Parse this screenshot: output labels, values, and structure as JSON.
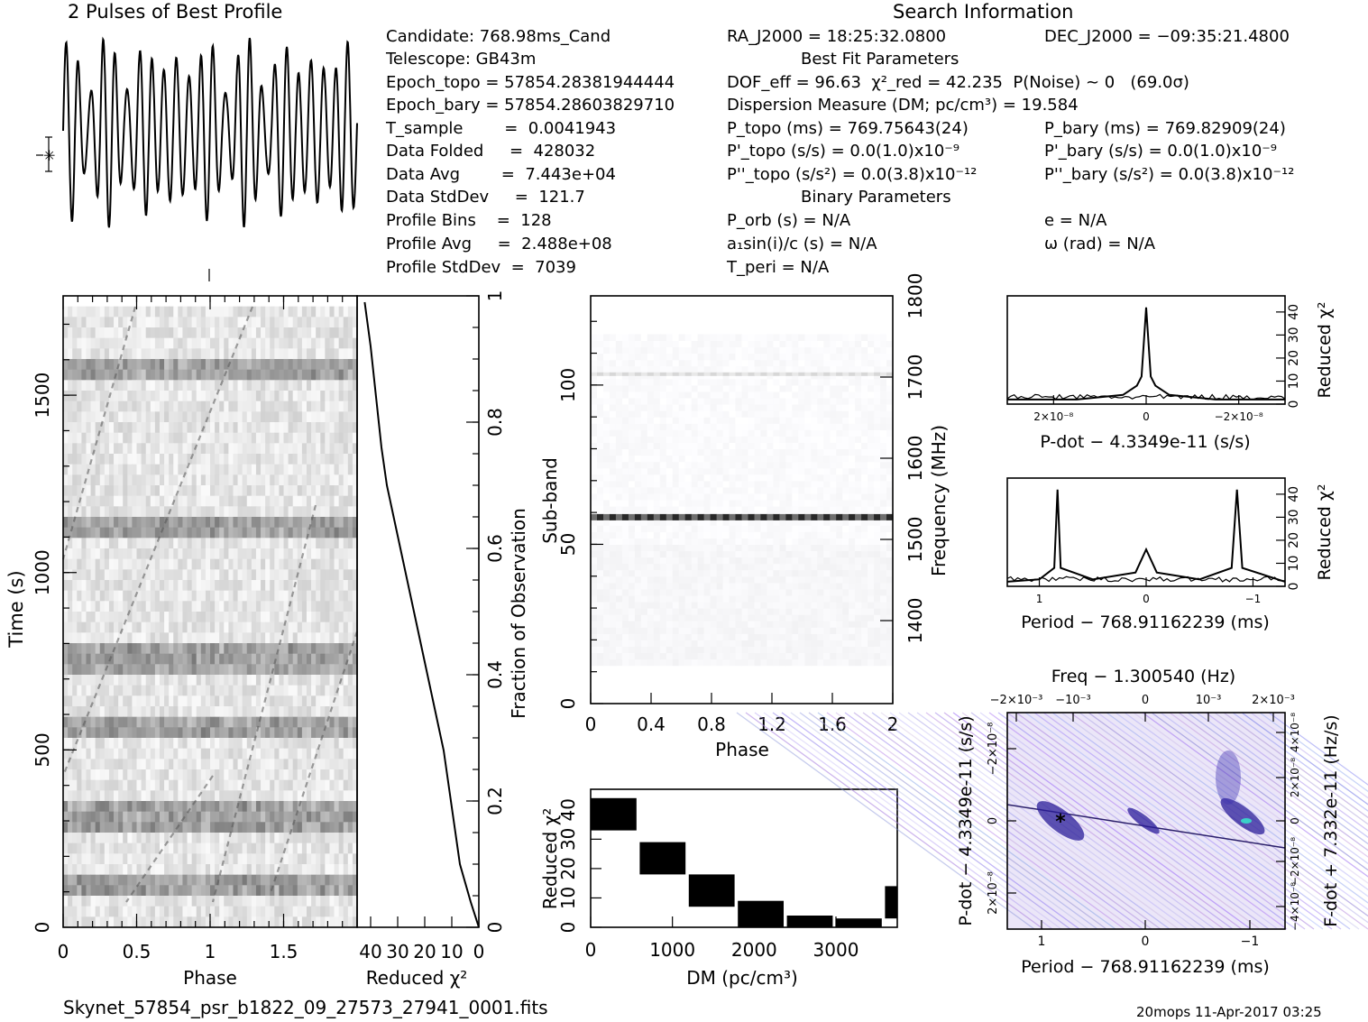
{
  "header": {
    "profile_title": "2 Pulses of Best Profile",
    "search_title": "Search Information",
    "candidate": "Candidate:  768.98ms_Cand",
    "telescope": "Telescope:  GB43m",
    "epoch_topo": "Epoch_topo = 57854.28381944444",
    "epoch_bary": "Epoch_bary = 57854.28603829710",
    "t_sample": "T_sample        =  0.0041943",
    "data_folded": "Data Folded     =  428032",
    "data_avg": "Data Avg        =  7.443e+04",
    "data_stddev": "Data StdDev     =  121.7",
    "profile_bins": "Profile Bins    =  128",
    "profile_avg": "Profile Avg     =  2.488e+08",
    "profile_stddev": "Profile StdDev  =  7039",
    "ra": "RA_J2000 = 18:25:32.0800",
    "dec": "DEC_J2000 = −09:35:21.4800",
    "best_fit_title": "Best Fit Parameters",
    "dof": "DOF_eff = 96.63  χ²_red = 42.235  P(Noise) ~ 0   (69.0σ)",
    "dm_line": "Dispersion Measure (DM; pc/cm³) = 19.584",
    "p_topo": "P_topo (ms) =  769.75643(24)",
    "p_bary": "P_bary (ms) =  769.82909(24)",
    "pd_topo": "P'_topo (s/s) = 0.0(1.0)x10⁻⁹",
    "pd_bary": "P'_bary (s/s) = 0.0(1.0)x10⁻⁹",
    "pdd_topo": "P''_topo (s/s²) = 0.0(3.8)x10⁻¹²",
    "pdd_bary": "P''_bary (s/s²) = 0.0(3.8)x10⁻¹²",
    "binary_title": "Binary Parameters",
    "p_orb": "P_orb (s) = N/A",
    "ecc": "e = N/A",
    "a1sini": "a₁sin(i)/c (s) = N/A",
    "omega": "ω (rad) = N/A",
    "t_peri": "T_peri = N/A"
  },
  "footer": {
    "filename": "Skynet_57854_psr_b1822_09_27573_27941_0001.fits",
    "stamp": "20mops 11-Apr-2017 03:25"
  },
  "chart_data": [
    {
      "id": "time-phase",
      "type": "heatmap",
      "xlabel": "Phase",
      "ylabel": "Time (s)",
      "xlim": [
        0,
        2
      ],
      "ylim": [
        0,
        1780
      ],
      "xticks": [
        "0",
        "0.5",
        "1",
        "1.5"
      ],
      "yticks": [
        "0",
        "500",
        "1000",
        "1500"
      ]
    },
    {
      "id": "chi2-vs-fraction",
      "type": "line",
      "xlabel": "Reduced χ²",
      "ylabel": "Fraction of Observation",
      "xlim": [
        45,
        0
      ],
      "ylim": [
        0,
        1
      ],
      "xticks": [
        "40",
        "30",
        "20",
        "10",
        "0"
      ],
      "yticks": [
        "0",
        "0.2",
        "0.4",
        "0.6",
        "0.8",
        "1"
      ],
      "x": [
        0,
        3,
        7,
        9,
        11,
        13,
        16,
        19,
        22,
        25,
        28,
        31,
        34,
        36,
        38,
        40,
        42.2
      ],
      "y": [
        0,
        0.04,
        0.1,
        0.16,
        0.22,
        0.28,
        0.34,
        0.4,
        0.46,
        0.52,
        0.58,
        0.64,
        0.7,
        0.76,
        0.84,
        0.92,
        0.99
      ]
    },
    {
      "id": "subband-phase",
      "type": "heatmap",
      "xlabel": "Phase",
      "ylabel": "Sub-band",
      "y2label": "Frequency (MHz)",
      "xlim": [
        0,
        2
      ],
      "ylim": [
        0,
        128
      ],
      "xticks": [
        "0",
        "0.4",
        "0.8",
        "1.2",
        "1.6",
        "2"
      ],
      "yticks": [
        "0",
        "50",
        "100"
      ],
      "y2ticks": [
        "1400",
        "1500",
        "1600",
        "1700",
        "1800"
      ]
    },
    {
      "id": "dm-chi2",
      "type": "area",
      "xlabel": "DM (pc/cm³)",
      "ylabel": "Reduced χ²",
      "xlim": [
        0,
        3750
      ],
      "ylim": [
        0,
        47
      ],
      "xticks": [
        "0",
        "1000",
        "2000",
        "3000"
      ],
      "yticks": [
        "0",
        "10",
        "20",
        "30",
        "40"
      ],
      "x": [
        0,
        600,
        1200,
        1800,
        2400,
        3000,
        3600
      ],
      "y": [
        42,
        27,
        16,
        7,
        2,
        1,
        12
      ]
    },
    {
      "id": "pdot-chi2",
      "type": "line",
      "xlabel": "P-dot − 4.3349e-11 (s/s)",
      "ylabel": "Reduced χ²",
      "xticks": [
        "2×10⁻⁸",
        "0",
        "−2×10⁻⁸"
      ],
      "yticks": [
        "0",
        "10",
        "20",
        "30",
        "40"
      ],
      "xlim": [
        3e-08,
        -3e-08
      ],
      "ylim": [
        0,
        47
      ],
      "x": [
        3e-08,
        1.5e-08,
        5e-09,
        2e-09,
        1e-09,
        0,
        -1e-09,
        -2e-09,
        -5e-09,
        -1.5e-08,
        -3e-08
      ],
      "y": [
        2,
        2,
        4,
        8,
        12,
        42,
        12,
        8,
        4,
        2,
        2
      ]
    },
    {
      "id": "period-chi2",
      "type": "line",
      "xlabel": "Period − 768.91162239 (ms)",
      "ylabel": "Reduced χ²",
      "xticks": [
        "1",
        "0",
        "−1"
      ],
      "yticks": [
        "0",
        "10",
        "20",
        "30",
        "40"
      ],
      "xlim": [
        1.3,
        -1.3
      ],
      "ylim": [
        0,
        47
      ],
      "x": [
        1.3,
        1.0,
        0.86,
        0.83,
        0.8,
        0.5,
        0.1,
        0.0,
        -0.1,
        -0.5,
        -0.8,
        -0.85,
        -0.9,
        -1.3
      ],
      "y": [
        2,
        3,
        8,
        42,
        8,
        3,
        6,
        16,
        6,
        3,
        8,
        42,
        8,
        2
      ]
    },
    {
      "id": "period-pdot-plane",
      "type": "heatmap",
      "title": "Freq − 1.300540 (Hz)",
      "xlabel": "Period − 768.91162239 (ms)",
      "ylabel": "P-dot − 4.3349e-11 (s/s)",
      "y2label": "F-dot + 7.332e-11 (Hz/s)",
      "xticks": [
        "1",
        "0",
        "−1"
      ],
      "x2ticks": [
        "−2×10⁻³",
        "−10⁻³",
        "0",
        "10⁻³",
        "2×10⁻³"
      ],
      "yticks": [
        "−2×10⁻⁸",
        "0",
        "2×10⁻⁸"
      ],
      "y2ticks": [
        "4×10⁻⁸",
        "2×10⁻⁸",
        "0",
        "−2×10⁻⁸",
        "−4×10⁻⁸"
      ]
    }
  ]
}
